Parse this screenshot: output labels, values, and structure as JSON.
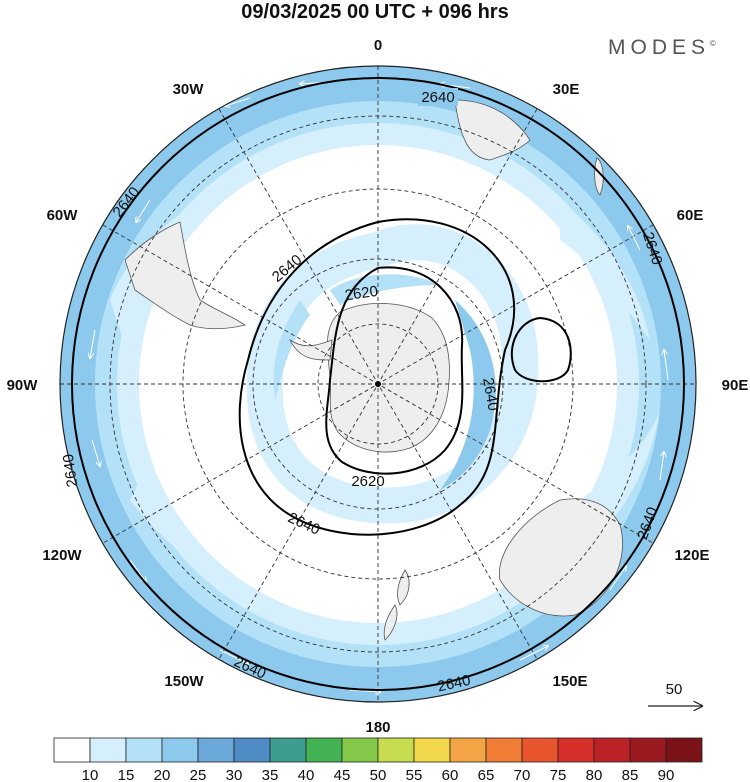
{
  "title": "09/03/2025  00 UTC  + 096 hrs",
  "brand": "MODES",
  "brand_mark": "©",
  "longitude_labels": [
    "0",
    "30E",
    "60E",
    "90E",
    "120E",
    "150E",
    "180",
    "150W",
    "120W",
    "90W",
    "60W",
    "30W"
  ],
  "contour_labels": {
    "outer": "2640",
    "inner_1": "2640",
    "inner_2": "2620"
  },
  "vector_reference": "50",
  "colorbar": {
    "labels": [
      "10",
      "15",
      "20",
      "25",
      "30",
      "35",
      "40",
      "45",
      "50",
      "55",
      "60",
      "65",
      "70",
      "75",
      "80",
      "85",
      "90"
    ],
    "colors": [
      "#ffffff",
      "#d6effc",
      "#b3e1f8",
      "#8dc9ec",
      "#6aa8da",
      "#4f8cc6",
      "#3d9e8e",
      "#43b254",
      "#84c84a",
      "#c7dc4e",
      "#f3d84b",
      "#f3a545",
      "#f07c36",
      "#e8542d",
      "#d7302a",
      "#bb2228",
      "#9a1a1f",
      "#7a1218"
    ]
  },
  "colors": {
    "band_strong": "#8dc9ec",
    "band_mid": "#b3e1f8",
    "band_light": "#d6effc",
    "land": "#eeeeee"
  }
}
